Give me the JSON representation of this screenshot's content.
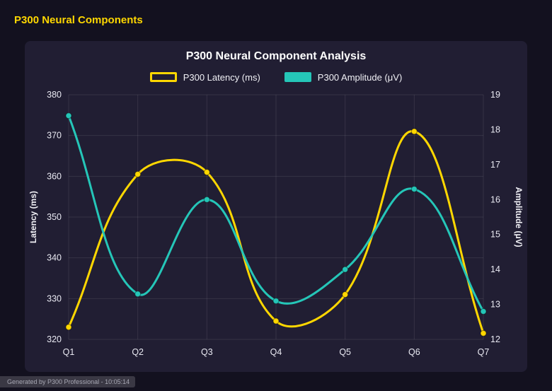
{
  "page": {
    "title": "P300 Neural Components",
    "footer": "Generated by P300 Professional - 10:05:14"
  },
  "chart_data": {
    "type": "line",
    "title": "P300 Neural Component Analysis",
    "categories": [
      "Q1",
      "Q2",
      "Q3",
      "Q4",
      "Q5",
      "Q6",
      "Q7"
    ],
    "series": [
      {
        "name": "P300 Latency (ms)",
        "color": "#ffd700",
        "axis": "left",
        "swatch": "outline",
        "values": [
          323,
          360.5,
          361,
          324.5,
          331,
          371,
          321.5
        ]
      },
      {
        "name": "P300 Amplitude (μV)",
        "color": "#25c6b8",
        "axis": "right",
        "swatch": "solid",
        "values": [
          18.4,
          13.3,
          16.0,
          13.1,
          14.0,
          16.3,
          12.8
        ]
      }
    ],
    "axes": {
      "left": {
        "label": "Latency (ms)",
        "min": 320,
        "max": 380,
        "step": 10
      },
      "right": {
        "label": "Amplitude (μV)",
        "min": 12,
        "max": 19,
        "step": 1
      }
    },
    "grid": true,
    "legend_position": "top",
    "line_tension": 0.4
  }
}
